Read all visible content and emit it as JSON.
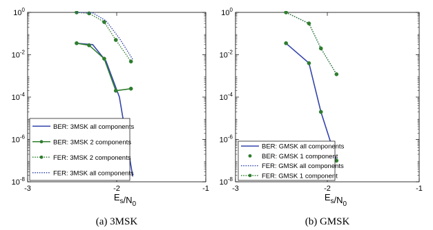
{
  "chart_data": [
    {
      "type": "line",
      "caption": "(a) 3MSK",
      "xlabel": "E_s/N_0",
      "xscale": "linear",
      "yscale": "log",
      "xlim": [
        -3,
        -1
      ],
      "ylim": [
        1e-08,
        1
      ],
      "xticks": [
        -3,
        -2,
        -1
      ],
      "yticks": [
        1e-08,
        1e-06,
        0.0001,
        0.01,
        1
      ],
      "legend": "lower-left",
      "series": [
        {
          "name": "BER: 3MSK all components",
          "color": "#3344aa",
          "style": "solid",
          "marker": "none",
          "x": [
            -2.45,
            -2.27,
            -2.12,
            -1.97,
            -1.82
          ],
          "y": [
            0.035,
            0.03,
            0.005,
            0.0001,
            1.8e-08
          ]
        },
        {
          "name": "BER: 3MSK 2 components",
          "color": "#2e7d2e",
          "style": "solid",
          "marker": "dot",
          "x": [
            -2.45,
            -2.31,
            -2.14,
            -2.01,
            -1.84
          ],
          "y": [
            0.035,
            0.028,
            0.0065,
            0.0002,
            0.00025
          ]
        },
        {
          "name": "FER: 3MSK 2 components",
          "color": "#2e7d2e",
          "style": "dotted",
          "marker": "dot",
          "x": [
            -2.45,
            -2.31,
            -2.14,
            -2.01,
            -1.84
          ],
          "y": [
            1.0,
            0.9,
            0.35,
            0.05,
            0.0048
          ]
        },
        {
          "name": "FER: 3MSK all components",
          "color": "#3344aa",
          "style": "dotted",
          "marker": "none",
          "x": [
            -2.45,
            -2.27,
            -2.12,
            -1.97,
            -1.82
          ],
          "y": [
            1.0,
            0.95,
            0.4,
            0.06,
            0.006
          ]
        }
      ]
    },
    {
      "type": "line",
      "caption": "(b) GMSK",
      "xlabel": "E_s/N_0",
      "xscale": "linear",
      "yscale": "log",
      "xlim": [
        -3,
        -1
      ],
      "ylim": [
        1e-08,
        1
      ],
      "xticks": [
        -3,
        -2,
        -1
      ],
      "yticks": [
        1e-08,
        1e-06,
        0.0001,
        0.01,
        1
      ],
      "legend": "lower-left",
      "series": [
        {
          "name": "BER: GMSK all components",
          "color": "#3344aa",
          "style": "solid",
          "marker": "none",
          "x": [
            -2.45,
            -2.2,
            -2.07,
            -1.9
          ],
          "y": [
            0.035,
            0.004,
            2e-05,
            1e-07
          ]
        },
        {
          "name": "BER: GMSK 1 component",
          "color": "#2e7d2e",
          "style": "none",
          "marker": "dot",
          "x": [
            -2.45,
            -2.2,
            -2.07,
            -1.9
          ],
          "y": [
            0.035,
            0.004,
            2e-05,
            1e-07
          ]
        },
        {
          "name": "FER: GMSK all components",
          "color": "#3344aa",
          "style": "dotted",
          "marker": "none",
          "x": [
            -2.45,
            -2.2,
            -2.07,
            -1.9
          ],
          "y": [
            1.0,
            0.3,
            0.02,
            0.0012
          ]
        },
        {
          "name": "FER: GMSK 1 component",
          "color": "#2e7d2e",
          "style": "dotted",
          "marker": "dot",
          "x": [
            -2.45,
            -2.2,
            -2.07,
            -1.9
          ],
          "y": [
            1.0,
            0.3,
            0.02,
            0.0012
          ]
        }
      ]
    }
  ]
}
